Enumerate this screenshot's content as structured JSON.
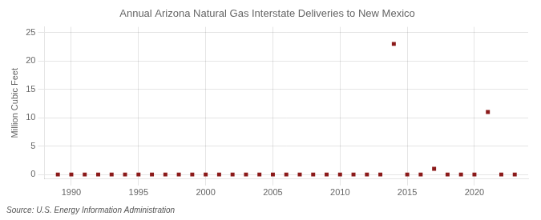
{
  "chart_data": {
    "type": "scatter",
    "title": "Annual Arizona Natural Gas Interstate Deliveries to New Mexico",
    "ylabel": "Million Cubic Feet",
    "annotation": "Source: U.S. Energy Information Administration",
    "x": [
      1989,
      1990,
      1991,
      1992,
      1993,
      1994,
      1995,
      1996,
      1997,
      1998,
      1999,
      2000,
      2001,
      2002,
      2003,
      2004,
      2005,
      2006,
      2007,
      2008,
      2009,
      2010,
      2011,
      2012,
      2013,
      2014,
      2015,
      2016,
      2017,
      2018,
      2019,
      2020,
      2021,
      2022,
      2023
    ],
    "values": [
      0,
      0,
      0,
      0,
      0,
      0,
      0,
      0,
      0,
      0,
      0,
      0,
      0,
      0,
      0,
      0,
      0,
      0,
      0,
      0,
      0,
      0,
      0,
      0,
      0,
      23,
      0,
      0,
      1,
      0,
      0,
      0,
      11,
      0,
      0
    ],
    "color": "#8b1a1a",
    "marker": "square",
    "xlim": [
      1988,
      2024
    ],
    "ylim": [
      -0.8,
      26
    ],
    "xticks": [
      1990,
      1995,
      2000,
      2005,
      2010,
      2015,
      2020
    ],
    "yticks": [
      0,
      5,
      10,
      15,
      20,
      25
    ],
    "grid": true
  }
}
